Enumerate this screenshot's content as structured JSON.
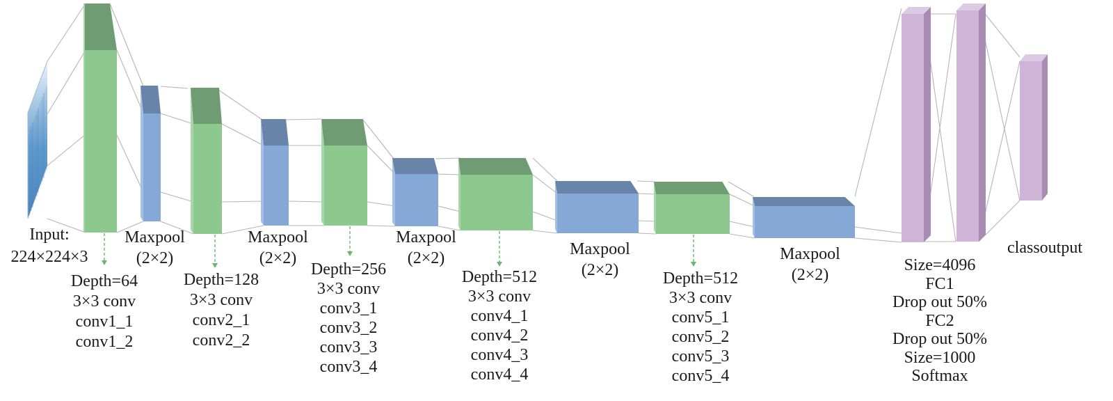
{
  "colors": {
    "conv_front": "#8dc98e",
    "conv_top": "#6f9c73",
    "conv_side": "#a6d8a7",
    "pool_front": "#86a8d6",
    "pool_top": "#6884a8",
    "pool_side": "#a3bfe4",
    "fc_front": "#cfb4d8",
    "fc_top": "#dccbe3",
    "fc_side": "#a98cb3",
    "connector": "#b5b5b5",
    "arrow": "#6cb56f",
    "input_blue": "#4a8cc7"
  },
  "input": {
    "line1": "Input:",
    "line2": "224×224×3"
  },
  "blocks": {
    "conv1": {
      "lines": [
        "Depth=64",
        "3×3 conv",
        "conv1_1",
        "conv1_2"
      ]
    },
    "pool1": {
      "lines": [
        "Maxpool",
        "(2×2)"
      ]
    },
    "conv2": {
      "lines": [
        "Depth=128",
        "3×3 conv",
        "conv2_1",
        "conv2_2"
      ]
    },
    "pool2": {
      "lines": [
        "Maxpool",
        "(2×2)"
      ]
    },
    "conv3": {
      "lines": [
        "Depth=256",
        "3×3 conv",
        "conv3_1",
        "conv3_2",
        "conv3_3",
        "conv3_4"
      ]
    },
    "pool3": {
      "lines": [
        "Maxpool",
        "(2×2)"
      ]
    },
    "conv4": {
      "lines": [
        "Depth=512",
        "3×3 conv",
        "conv4_1",
        "conv4_2",
        "conv4_3",
        "conv4_4"
      ]
    },
    "pool4": {
      "lines": [
        "Maxpool",
        "(2×2)"
      ]
    },
    "conv5": {
      "lines": [
        "Depth=512",
        "3×3 conv",
        "conv5_1",
        "conv5_2",
        "conv5_3",
        "conv5_4"
      ]
    },
    "pool5": {
      "lines": [
        "Maxpool",
        "(2×2)"
      ]
    },
    "fc": {
      "lines": [
        "Size=4096",
        "FC1",
        "Drop out 50%",
        "FC2",
        "Drop out 50%",
        "Size=1000",
        "Softmax"
      ]
    },
    "output": {
      "label": "classoutput"
    }
  }
}
